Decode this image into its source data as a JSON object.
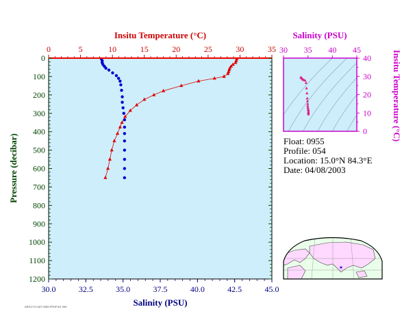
{
  "chart_data": [
    {
      "type": "scatter",
      "panel": "profile",
      "top_axis_title": "Insitu Temperature (°C)",
      "bottom_axis_title": "Salinity (PSU)",
      "y_axis_title": "Pressure (decibar)",
      "temp_xlim": [
        0,
        35
      ],
      "salinity_xlim": [
        30.0,
        45.0
      ],
      "ylim": [
        0,
        1200
      ],
      "y_inverted": true,
      "temp_ticks": [
        "0",
        "5",
        "10",
        "15",
        "20",
        "25",
        "30",
        "35"
      ],
      "salinity_ticks": [
        "30.0",
        "32.5",
        "35.0",
        "37.5",
        "40.0",
        "42.5",
        "45.0"
      ],
      "pressure_ticks": [
        "0",
        "100",
        "200",
        "300",
        "400",
        "500",
        "600",
        "700",
        "800",
        "900",
        "1000",
        "1100",
        "1200"
      ],
      "series": [
        {
          "variable": "temperature",
          "color": "#dd0000",
          "marker": "triangle",
          "points": [
            [
              29.5,
              5
            ],
            [
              29.4,
              15
            ],
            [
              29.3,
              25
            ],
            [
              28.9,
              35
            ],
            [
              28.6,
              45
            ],
            [
              28.4,
              55
            ],
            [
              28.3,
              65
            ],
            [
              28.2,
              75
            ],
            [
              28.1,
              85
            ],
            [
              27.5,
              100
            ],
            [
              26.0,
              110
            ],
            [
              23.5,
              125
            ],
            [
              20.8,
              150
            ],
            [
              18.0,
              178
            ],
            [
              16.5,
              200
            ],
            [
              15.0,
              225
            ],
            [
              13.8,
              255
            ],
            [
              12.8,
              285
            ],
            [
              12.0,
              318
            ],
            [
              11.5,
              350
            ],
            [
              11.2,
              375
            ],
            [
              10.8,
              410
            ],
            [
              10.3,
              450
            ],
            [
              9.9,
              500
            ],
            [
              9.6,
              550
            ],
            [
              9.3,
              600
            ],
            [
              8.9,
              650
            ]
          ]
        },
        {
          "variable": "salinity",
          "color": "#0000cc",
          "marker": "circle",
          "points": [
            [
              33.55,
              5
            ],
            [
              33.6,
              15
            ],
            [
              33.6,
              25
            ],
            [
              33.65,
              35
            ],
            [
              33.75,
              45
            ],
            [
              33.85,
              55
            ],
            [
              34.05,
              65
            ],
            [
              34.3,
              80
            ],
            [
              34.55,
              95
            ],
            [
              34.7,
              110
            ],
            [
              34.8,
              125
            ],
            [
              34.85,
              145
            ],
            [
              34.9,
              175
            ],
            [
              34.95,
              210
            ],
            [
              34.95,
              240
            ],
            [
              35.0,
              270
            ],
            [
              35.05,
              300
            ],
            [
              35.1,
              335
            ],
            [
              35.1,
              375
            ],
            [
              35.1,
              410
            ],
            [
              35.1,
              450
            ],
            [
              35.1,
              500
            ],
            [
              35.1,
              550
            ],
            [
              35.1,
              600
            ],
            [
              35.1,
              650
            ]
          ]
        }
      ]
    },
    {
      "type": "scatter",
      "panel": "ts-diagram",
      "x_axis_title": "Salinity (PSU)",
      "y_axis_title": "Insitu Temperature (°C)",
      "xlim": [
        30,
        45
      ],
      "ylim": [
        0,
        40
      ],
      "x_ticks": [
        "30",
        "35",
        "40",
        "45"
      ],
      "y_ticks": [
        "0",
        "10",
        "20",
        "30",
        "40"
      ],
      "color": "#e0208a",
      "points": [
        [
          33.55,
          29.5
        ],
        [
          33.6,
          29.3
        ],
        [
          33.75,
          28.9
        ],
        [
          33.9,
          28.4
        ],
        [
          34.1,
          28.1
        ],
        [
          34.4,
          27.8
        ],
        [
          34.6,
          26.5
        ],
        [
          34.7,
          23.5
        ],
        [
          34.8,
          20.8
        ],
        [
          34.85,
          18.0
        ],
        [
          34.9,
          16.5
        ],
        [
          34.95,
          15.0
        ],
        [
          34.95,
          13.8
        ],
        [
          35.0,
          12.8
        ],
        [
          35.05,
          12.0
        ],
        [
          35.1,
          11.5
        ],
        [
          35.1,
          10.8
        ],
        [
          35.1,
          10.3
        ],
        [
          35.1,
          9.9
        ],
        [
          35.1,
          9.3
        ]
      ]
    }
  ],
  "float_info": {
    "float": "Float:  0955",
    "profile": "Profile:  054",
    "location": "Location:  15.0°N  84.3°E",
    "date": "Date:  04/08/2003"
  },
  "colors": {
    "plot_bg": "#cdeefa",
    "temperature": "#cc0000",
    "salinity_axis": "#000080",
    "pressure_axis": "#004400",
    "ts_axis": "#cc00cc",
    "land": "#ffd9ff",
    "ocean": "#eaffea"
  },
  "footer_text": "ARGO FLOAT 0955 PROFILE 054"
}
